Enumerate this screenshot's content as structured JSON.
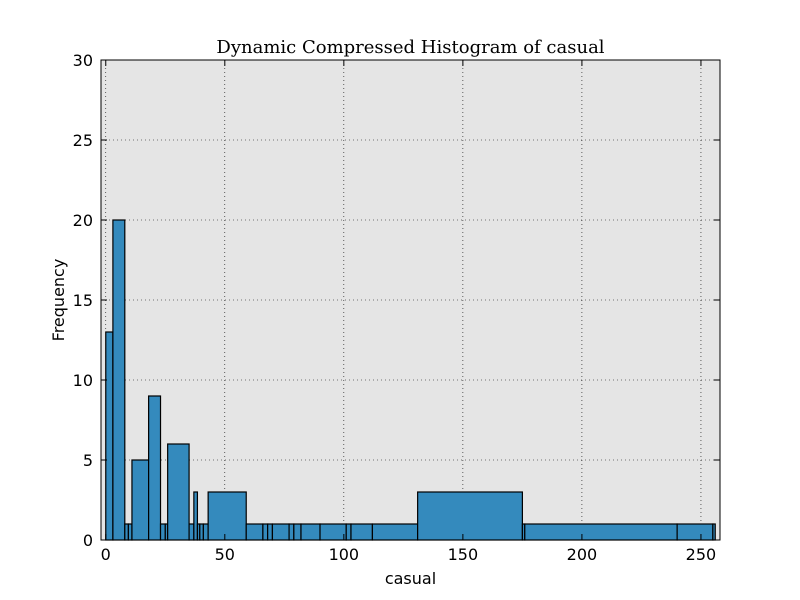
{
  "chart_data": {
    "type": "bar",
    "title": "Dynamic Compressed Histogram of casual",
    "xlabel": "casual",
    "ylabel": "Frequency",
    "xlim": [
      -2,
      258
    ],
    "ylim": [
      0,
      30
    ],
    "xticks": [
      0,
      50,
      100,
      150,
      200,
      250
    ],
    "yticks": [
      0,
      5,
      10,
      15,
      20,
      25,
      30
    ],
    "grid": true,
    "bar_color": "#348ABD",
    "plot_background": "#E5E5E5",
    "bins": [
      {
        "x0": 0,
        "x1": 3,
        "count": 13
      },
      {
        "x0": 3,
        "x1": 8,
        "count": 20
      },
      {
        "x0": 8,
        "x1": 9.5,
        "count": 1
      },
      {
        "x0": 9.5,
        "x1": 11,
        "count": 1
      },
      {
        "x0": 11,
        "x1": 18,
        "count": 5
      },
      {
        "x0": 18,
        "x1": 23,
        "count": 9
      },
      {
        "x0": 23,
        "x1": 25,
        "count": 1
      },
      {
        "x0": 25,
        "x1": 26,
        "count": 1
      },
      {
        "x0": 26,
        "x1": 35,
        "count": 6
      },
      {
        "x0": 35,
        "x1": 37,
        "count": 1
      },
      {
        "x0": 37,
        "x1": 38.5,
        "count": 3
      },
      {
        "x0": 38.5,
        "x1": 39.5,
        "count": 1
      },
      {
        "x0": 39.5,
        "x1": 41,
        "count": 1
      },
      {
        "x0": 41,
        "x1": 43,
        "count": 1
      },
      {
        "x0": 43,
        "x1": 59,
        "count": 3
      },
      {
        "x0": 59,
        "x1": 66,
        "count": 1
      },
      {
        "x0": 66,
        "x1": 68,
        "count": 1
      },
      {
        "x0": 68,
        "x1": 70,
        "count": 1
      },
      {
        "x0": 70,
        "x1": 77,
        "count": 1
      },
      {
        "x0": 77,
        "x1": 79,
        "count": 1
      },
      {
        "x0": 79,
        "x1": 82,
        "count": 1
      },
      {
        "x0": 82,
        "x1": 90,
        "count": 1
      },
      {
        "x0": 90,
        "x1": 101,
        "count": 1
      },
      {
        "x0": 101,
        "x1": 103,
        "count": 1
      },
      {
        "x0": 103,
        "x1": 112,
        "count": 1
      },
      {
        "x0": 112,
        "x1": 131,
        "count": 1
      },
      {
        "x0": 131,
        "x1": 175,
        "count": 3
      },
      {
        "x0": 175,
        "x1": 176,
        "count": 1
      },
      {
        "x0": 176,
        "x1": 240,
        "count": 1
      },
      {
        "x0": 240,
        "x1": 255,
        "count": 1
      },
      {
        "x0": 255,
        "x1": 256,
        "count": 1
      }
    ]
  }
}
